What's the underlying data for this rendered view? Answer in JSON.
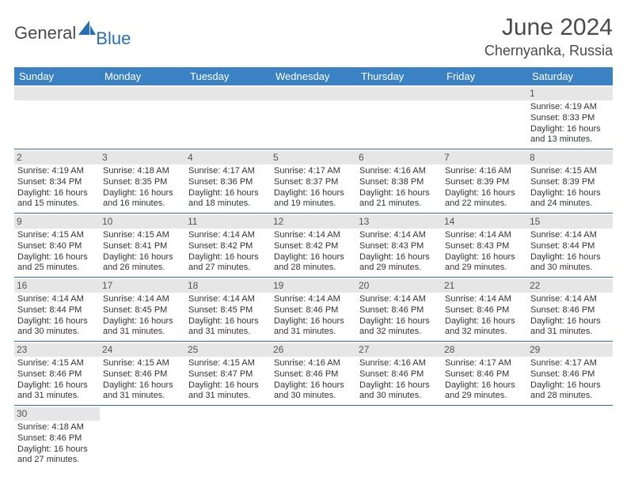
{
  "brand": {
    "name_main": "General",
    "name_accent": "Blue",
    "accent_color": "#2570b8"
  },
  "header": {
    "month_title": "June 2024",
    "location": "Chernyanka, Russia"
  },
  "calendar": {
    "header_bg": "#3b82c4",
    "header_fg": "#ffffff",
    "daynum_bg": "#e6e6e6",
    "border_color": "#2570b8",
    "text_color": "#333333",
    "cell_fontsize": 11,
    "daynames": [
      "Sunday",
      "Monday",
      "Tuesday",
      "Wednesday",
      "Thursday",
      "Friday",
      "Saturday"
    ],
    "weeks": [
      [
        null,
        null,
        null,
        null,
        null,
        null,
        {
          "n": "1",
          "sunrise": "Sunrise: 4:19 AM",
          "sunset": "Sunset: 8:33 PM",
          "daylight1": "Daylight: 16 hours",
          "daylight2": "and 13 minutes."
        }
      ],
      [
        {
          "n": "2",
          "sunrise": "Sunrise: 4:19 AM",
          "sunset": "Sunset: 8:34 PM",
          "daylight1": "Daylight: 16 hours",
          "daylight2": "and 15 minutes."
        },
        {
          "n": "3",
          "sunrise": "Sunrise: 4:18 AM",
          "sunset": "Sunset: 8:35 PM",
          "daylight1": "Daylight: 16 hours",
          "daylight2": "and 16 minutes."
        },
        {
          "n": "4",
          "sunrise": "Sunrise: 4:17 AM",
          "sunset": "Sunset: 8:36 PM",
          "daylight1": "Daylight: 16 hours",
          "daylight2": "and 18 minutes."
        },
        {
          "n": "5",
          "sunrise": "Sunrise: 4:17 AM",
          "sunset": "Sunset: 8:37 PM",
          "daylight1": "Daylight: 16 hours",
          "daylight2": "and 19 minutes."
        },
        {
          "n": "6",
          "sunrise": "Sunrise: 4:16 AM",
          "sunset": "Sunset: 8:38 PM",
          "daylight1": "Daylight: 16 hours",
          "daylight2": "and 21 minutes."
        },
        {
          "n": "7",
          "sunrise": "Sunrise: 4:16 AM",
          "sunset": "Sunset: 8:39 PM",
          "daylight1": "Daylight: 16 hours",
          "daylight2": "and 22 minutes."
        },
        {
          "n": "8",
          "sunrise": "Sunrise: 4:15 AM",
          "sunset": "Sunset: 8:39 PM",
          "daylight1": "Daylight: 16 hours",
          "daylight2": "and 24 minutes."
        }
      ],
      [
        {
          "n": "9",
          "sunrise": "Sunrise: 4:15 AM",
          "sunset": "Sunset: 8:40 PM",
          "daylight1": "Daylight: 16 hours",
          "daylight2": "and 25 minutes."
        },
        {
          "n": "10",
          "sunrise": "Sunrise: 4:15 AM",
          "sunset": "Sunset: 8:41 PM",
          "daylight1": "Daylight: 16 hours",
          "daylight2": "and 26 minutes."
        },
        {
          "n": "11",
          "sunrise": "Sunrise: 4:14 AM",
          "sunset": "Sunset: 8:42 PM",
          "daylight1": "Daylight: 16 hours",
          "daylight2": "and 27 minutes."
        },
        {
          "n": "12",
          "sunrise": "Sunrise: 4:14 AM",
          "sunset": "Sunset: 8:42 PM",
          "daylight1": "Daylight: 16 hours",
          "daylight2": "and 28 minutes."
        },
        {
          "n": "13",
          "sunrise": "Sunrise: 4:14 AM",
          "sunset": "Sunset: 8:43 PM",
          "daylight1": "Daylight: 16 hours",
          "daylight2": "and 29 minutes."
        },
        {
          "n": "14",
          "sunrise": "Sunrise: 4:14 AM",
          "sunset": "Sunset: 8:43 PM",
          "daylight1": "Daylight: 16 hours",
          "daylight2": "and 29 minutes."
        },
        {
          "n": "15",
          "sunrise": "Sunrise: 4:14 AM",
          "sunset": "Sunset: 8:44 PM",
          "daylight1": "Daylight: 16 hours",
          "daylight2": "and 30 minutes."
        }
      ],
      [
        {
          "n": "16",
          "sunrise": "Sunrise: 4:14 AM",
          "sunset": "Sunset: 8:44 PM",
          "daylight1": "Daylight: 16 hours",
          "daylight2": "and 30 minutes."
        },
        {
          "n": "17",
          "sunrise": "Sunrise: 4:14 AM",
          "sunset": "Sunset: 8:45 PM",
          "daylight1": "Daylight: 16 hours",
          "daylight2": "and 31 minutes."
        },
        {
          "n": "18",
          "sunrise": "Sunrise: 4:14 AM",
          "sunset": "Sunset: 8:45 PM",
          "daylight1": "Daylight: 16 hours",
          "daylight2": "and 31 minutes."
        },
        {
          "n": "19",
          "sunrise": "Sunrise: 4:14 AM",
          "sunset": "Sunset: 8:46 PM",
          "daylight1": "Daylight: 16 hours",
          "daylight2": "and 31 minutes."
        },
        {
          "n": "20",
          "sunrise": "Sunrise: 4:14 AM",
          "sunset": "Sunset: 8:46 PM",
          "daylight1": "Daylight: 16 hours",
          "daylight2": "and 32 minutes."
        },
        {
          "n": "21",
          "sunrise": "Sunrise: 4:14 AM",
          "sunset": "Sunset: 8:46 PM",
          "daylight1": "Daylight: 16 hours",
          "daylight2": "and 32 minutes."
        },
        {
          "n": "22",
          "sunrise": "Sunrise: 4:14 AM",
          "sunset": "Sunset: 8:46 PM",
          "daylight1": "Daylight: 16 hours",
          "daylight2": "and 31 minutes."
        }
      ],
      [
        {
          "n": "23",
          "sunrise": "Sunrise: 4:15 AM",
          "sunset": "Sunset: 8:46 PM",
          "daylight1": "Daylight: 16 hours",
          "daylight2": "and 31 minutes."
        },
        {
          "n": "24",
          "sunrise": "Sunrise: 4:15 AM",
          "sunset": "Sunset: 8:46 PM",
          "daylight1": "Daylight: 16 hours",
          "daylight2": "and 31 minutes."
        },
        {
          "n": "25",
          "sunrise": "Sunrise: 4:15 AM",
          "sunset": "Sunset: 8:47 PM",
          "daylight1": "Daylight: 16 hours",
          "daylight2": "and 31 minutes."
        },
        {
          "n": "26",
          "sunrise": "Sunrise: 4:16 AM",
          "sunset": "Sunset: 8:46 PM",
          "daylight1": "Daylight: 16 hours",
          "daylight2": "and 30 minutes."
        },
        {
          "n": "27",
          "sunrise": "Sunrise: 4:16 AM",
          "sunset": "Sunset: 8:46 PM",
          "daylight1": "Daylight: 16 hours",
          "daylight2": "and 30 minutes."
        },
        {
          "n": "28",
          "sunrise": "Sunrise: 4:17 AM",
          "sunset": "Sunset: 8:46 PM",
          "daylight1": "Daylight: 16 hours",
          "daylight2": "and 29 minutes."
        },
        {
          "n": "29",
          "sunrise": "Sunrise: 4:17 AM",
          "sunset": "Sunset: 8:46 PM",
          "daylight1": "Daylight: 16 hours",
          "daylight2": "and 28 minutes."
        }
      ],
      [
        {
          "n": "30",
          "sunrise": "Sunrise: 4:18 AM",
          "sunset": "Sunset: 8:46 PM",
          "daylight1": "Daylight: 16 hours",
          "daylight2": "and 27 minutes."
        },
        null,
        null,
        null,
        null,
        null,
        null
      ]
    ]
  }
}
